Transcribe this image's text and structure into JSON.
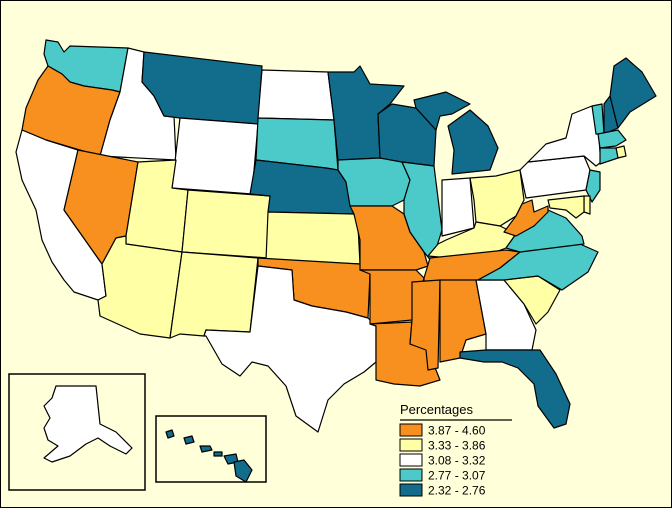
{
  "colors": {
    "background": "#ffffd9",
    "c1": "#f7901e",
    "c2": "#ffffa6",
    "c3": "#ffffff",
    "c4": "#4cc9c9",
    "c5": "#126d8c"
  },
  "legend": {
    "title": "Percentages",
    "items": [
      {
        "range": "3.87 - 4.60",
        "color": "#f7901e"
      },
      {
        "range": "3.33 - 3.86",
        "color": "#ffffa6"
      },
      {
        "range": "3.08 - 3.32",
        "color": "#ffffff"
      },
      {
        "range": "2.77 - 3.07",
        "color": "#4cc9c9"
      },
      {
        "range": "2.32 - 2.76",
        "color": "#126d8c"
      }
    ]
  },
  "states": {
    "WA": "c4",
    "OR": "c1",
    "CA": "c3",
    "ID": "c3",
    "NV": "c1",
    "MT": "c5",
    "WY": "c3",
    "UT": "c2",
    "AZ": "c2",
    "CO": "c2",
    "NM": "c2",
    "ND": "c3",
    "SD": "c4",
    "NE": "c5",
    "KS": "c2",
    "OK": "c1",
    "TX": "c3",
    "MN": "c5",
    "IA": "c4",
    "MO": "c1",
    "AR": "c1",
    "LA": "c1",
    "WI": "c5",
    "IL": "c4",
    "MI": "c5",
    "IN": "c3",
    "OH": "c2",
    "KY": "c2",
    "TN": "c1",
    "MS": "c1",
    "AL": "c1",
    "GA": "c3",
    "FL": "c5",
    "SC": "c2",
    "NC": "c4",
    "VA": "c4",
    "WV": "c1",
    "PA": "c3",
    "NY": "c3",
    "VT": "c4",
    "NH": "c5",
    "ME": "c5",
    "MA": "c4",
    "RI": "c2",
    "CT": "c4",
    "NJ": "c4",
    "DE": "c2",
    "MD": "c2",
    "AK": "c3",
    "HI": "c5"
  }
}
